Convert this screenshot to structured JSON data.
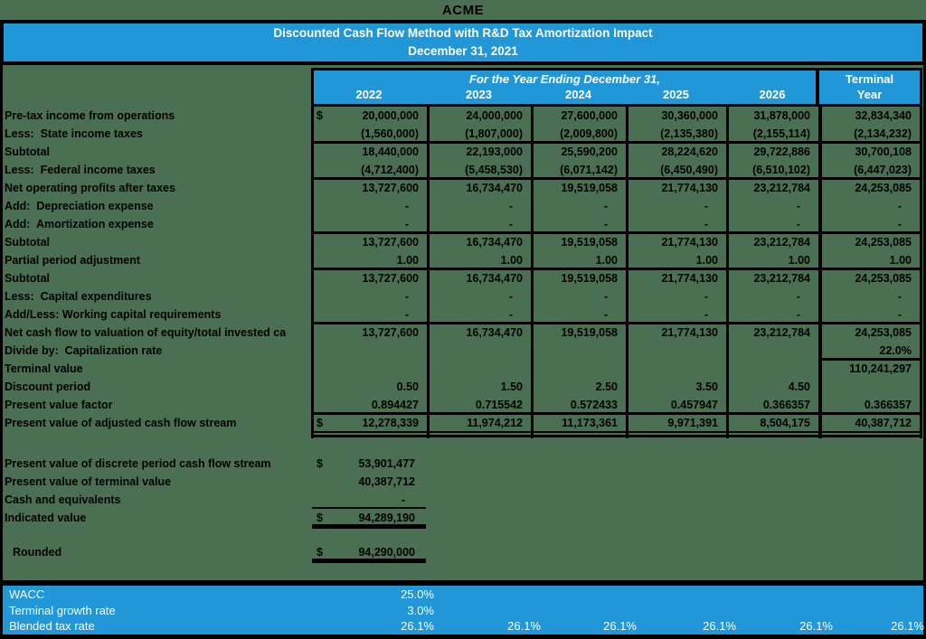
{
  "company": "ACME",
  "title_bar": {
    "line1": "Discounted Cash Flow Method with R&D Tax Amortization Impact",
    "line2": "December 31, 2021"
  },
  "table": {
    "span_header": "For the Year Ending December 31,",
    "years": [
      "2022",
      "2023",
      "2024",
      "2025",
      "2026"
    ],
    "terminal_header_line1": "Terminal",
    "terminal_header_line2": "Year",
    "rows": [
      {
        "label": "Pre-tax income from operations",
        "dollar": true,
        "values": [
          "20,000,000",
          "24,000,000",
          "27,600,000",
          "30,360,000",
          "31,878,000",
          "32,834,340"
        ]
      },
      {
        "label": "Less:  State income taxes",
        "rule_below": true,
        "values": [
          "(1,560,000)",
          "(1,807,000)",
          "(2,009,800)",
          "(2,135,380)",
          "(2,155,114)",
          "(2,134,232)"
        ]
      },
      {
        "label": "Subtotal",
        "values": [
          "18,440,000",
          "22,193,000",
          "25,590,200",
          "28,224,620",
          "29,722,886",
          "30,700,108"
        ]
      },
      {
        "label": "Less:  Federal income taxes",
        "rule_below": true,
        "values": [
          "(4,712,400)",
          "(5,458,530)",
          "(6,071,142)",
          "(6,450,490)",
          "(6,510,102)",
          "(6,447,023)"
        ]
      },
      {
        "label": "Net operating profits after taxes",
        "values": [
          "13,727,600",
          "16,734,470",
          "19,519,058",
          "21,774,130",
          "23,212,784",
          "24,253,085"
        ]
      },
      {
        "label": "Add:  Depreciation expense",
        "values": [
          "-",
          "-",
          "-",
          "-",
          "-",
          "-"
        ]
      },
      {
        "label": "Add:  Amortization expense",
        "rule_below": true,
        "values": [
          "-",
          "-",
          "-",
          "-",
          "-",
          "-"
        ]
      },
      {
        "label": "Subtotal",
        "values": [
          "13,727,600",
          "16,734,470",
          "19,519,058",
          "21,774,130",
          "23,212,784",
          "24,253,085"
        ]
      },
      {
        "label": "Partial period adjustment",
        "rule_below": true,
        "values": [
          "1.00",
          "1.00",
          "1.00",
          "1.00",
          "1.00",
          "1.00"
        ]
      },
      {
        "label": "Subtotal",
        "values": [
          "13,727,600",
          "16,734,470",
          "19,519,058",
          "21,774,130",
          "23,212,784",
          "24,253,085"
        ]
      },
      {
        "label": "Less:  Capital expenditures",
        "values": [
          "-",
          "-",
          "-",
          "-",
          "-",
          "-"
        ]
      },
      {
        "label": "Add/Less: Working capital requirements",
        "rule_below": true,
        "values": [
          "-",
          "-",
          "-",
          "-",
          "-",
          "-"
        ]
      },
      {
        "label": "Net cash flow to valuation of equity/total invested ca",
        "values": [
          "13,727,600",
          "16,734,470",
          "19,519,058",
          "21,774,130",
          "23,212,784",
          "24,253,085"
        ]
      },
      {
        "label": "Divide by:  Capitalization rate",
        "terminal_rule_below": true,
        "values": [
          "",
          "",
          "",
          "",
          "",
          "22.0%"
        ]
      },
      {
        "label": "Terminal value",
        "values": [
          "",
          "",
          "",
          "",
          "",
          "110,241,297"
        ]
      },
      {
        "label": "Discount period",
        "values": [
          "0.50",
          "1.50",
          "2.50",
          "3.50",
          "4.50",
          ""
        ]
      },
      {
        "label": "Present value factor",
        "rule_below": true,
        "values": [
          "0.894427",
          "0.715542",
          "0.572433",
          "0.457947",
          "0.366357",
          "0.366357"
        ]
      },
      {
        "label": "Present value of adjusted cash flow stream",
        "dollar": true,
        "double_rule_below": true,
        "values": [
          "12,278,339",
          "11,974,212",
          "11,173,361",
          "9,971,391",
          "8,504,175",
          "40,387,712"
        ]
      }
    ]
  },
  "summary": {
    "rows": [
      {
        "label": "Present value of discrete period cash flow stream",
        "dollar": true,
        "value": "53,901,477"
      },
      {
        "label": "Present value of terminal value",
        "value": "40,387,712"
      },
      {
        "label": "Cash and equivalents",
        "value": "-",
        "rule_below": true
      },
      {
        "label": "Indicated value",
        "dollar": true,
        "value": "94,289,190",
        "thick_rule_below": true
      }
    ],
    "rounded_row": {
      "label": "Rounded",
      "dollar": true,
      "value": "94,290,000",
      "thick_rule_below": true
    }
  },
  "assumptions": {
    "rows": [
      {
        "label": "WACC",
        "values": [
          "25.0%",
          "",
          "",
          "",
          "",
          ""
        ]
      },
      {
        "label": "Terminal growth rate",
        "values": [
          "3.0%",
          "",
          "",
          "",
          "",
          ""
        ]
      },
      {
        "label": "Blended tax rate",
        "values": [
          "26.1%",
          "26.1%",
          "26.1%",
          "26.1%",
          "26.1%",
          "26.1%"
        ]
      }
    ]
  },
  "colors": {
    "background_green": "#4a6f52",
    "accent_blue": "#2197d8",
    "border_black": "#000000",
    "text_white": "#ffffff",
    "text_black": "#000000"
  }
}
